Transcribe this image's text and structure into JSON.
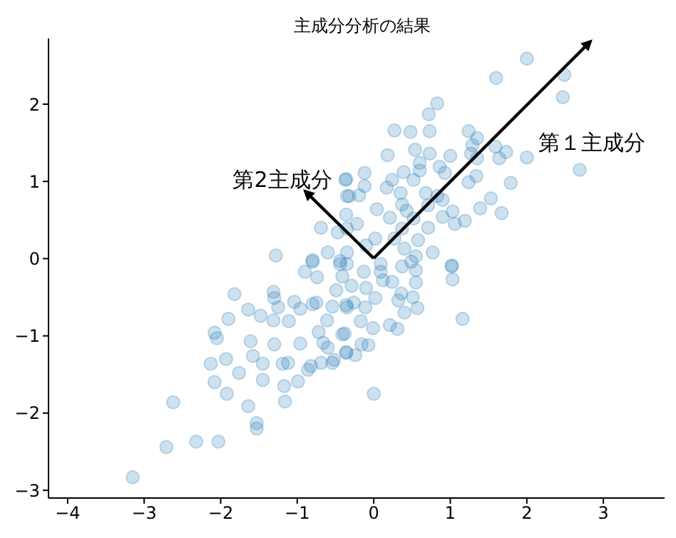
{
  "chart_data": {
    "type": "scatter",
    "title": "主成分分析の結果",
    "xlim": [
      -4.25,
      3.8
    ],
    "ylim": [
      -3.1,
      2.85
    ],
    "xticks": [
      -4,
      -3,
      -2,
      -1,
      0,
      1,
      2,
      3
    ],
    "yticks": [
      -3,
      -2,
      -1,
      0,
      1,
      2
    ],
    "grid": false,
    "marker": "circle",
    "series": [
      {
        "color": "#1f77b4",
        "x": [
          2.0,
          2.49,
          2.47,
          1.6,
          0.83,
          0.72,
          0.27,
          0.48,
          0.73,
          1.24,
          1.35,
          0.18,
          0.54,
          0.73,
          1.0,
          0.6,
          0.6,
          1.29,
          1.27,
          1.35,
          1.59,
          1.73,
          1.64,
          2.0,
          2.69,
          1.79,
          1.34,
          1.24,
          -0.12,
          -0.36,
          -0.12,
          0.24,
          0.39,
          0.86,
          0.93,
          -0.32,
          -0.19,
          0.17,
          0.35,
          0.52,
          0.68,
          0.83,
          -0.36,
          0.04,
          0.37,
          0.43,
          0.71,
          0.9,
          1.03,
          1.39,
          1.53,
          1.67,
          -0.22,
          0.21,
          0.52,
          0.9,
          1.19,
          1.06,
          0.71,
          0.37,
          0.02,
          0.27,
          0.58,
          -0.1,
          0.4,
          -0.35,
          0.55,
          0.77,
          1.02,
          0.09,
          0.37,
          -0.35,
          1.02,
          1.03,
          0.55,
          0.55,
          0.51,
          0.57,
          1.16,
          0.4,
          0.32,
          0.36,
          0.21,
          0.31,
          -0.01,
          -0.17,
          -0.11,
          -0.26,
          0.02,
          -0.1,
          0.12,
          0.24,
          0.09,
          -0.13,
          -0.29,
          -0.36,
          -0.38,
          -0.16,
          -0.07,
          -0.36,
          -0.24,
          0.0,
          0.49,
          -0.35,
          -1.82,
          -1.31,
          -1.3,
          -1.25,
          -1.64,
          -1.48,
          -1.31,
          -1.11,
          -1.04,
          -0.96,
          -0.8,
          -1.9,
          -2.08,
          -2.05,
          -1.61,
          -1.3,
          -0.96,
          -1.58,
          -1.93,
          -2.13,
          -1.45,
          -1.19,
          -1.12,
          -1.76,
          -2.08,
          -1.45,
          -1.17,
          -0.99,
          -0.86,
          -0.82,
          -0.69,
          -0.54,
          -1.92,
          -2.62,
          -1.64,
          -1.16,
          -1.53,
          -1.53,
          -2.32,
          -2.03,
          -2.71,
          -3.15,
          -0.41,
          -0.6,
          -0.52,
          -0.36,
          -0.72,
          -0.66,
          -0.61,
          -0.54,
          -0.74,
          -0.9,
          -0.49,
          -0.75,
          -0.41,
          -0.35,
          -0.44,
          -0.8,
          -0.37,
          -0.35,
          -0.69,
          -0.47,
          -1.28,
          -0.8,
          -0.6,
          -0.44
        ],
        "values": [
          2.59,
          2.38,
          2.09,
          2.34,
          2.01,
          1.87,
          1.66,
          1.64,
          1.65,
          1.65,
          1.56,
          1.34,
          1.41,
          1.36,
          1.33,
          1.24,
          1.14,
          1.47,
          1.36,
          1.3,
          1.45,
          1.38,
          1.3,
          1.31,
          1.15,
          0.98,
          1.07,
          0.99,
          1.11,
          1.03,
          0.94,
          1.02,
          1.12,
          1.19,
          1.11,
          0.81,
          0.82,
          0.92,
          0.85,
          1.02,
          0.85,
          0.81,
          0.57,
          0.64,
          0.7,
          0.62,
          0.69,
          0.76,
          0.61,
          0.65,
          0.78,
          0.59,
          0.45,
          0.53,
          0.52,
          0.54,
          0.49,
          0.45,
          0.4,
          0.39,
          0.26,
          0.26,
          0.24,
          0.17,
          0.13,
          0.39,
          0.03,
          0.08,
          -0.09,
          -0.07,
          -0.1,
          0.08,
          -0.1,
          -0.27,
          -0.15,
          -0.31,
          -0.5,
          -0.64,
          -0.78,
          -0.7,
          -0.54,
          -0.45,
          -0.86,
          -0.91,
          -0.9,
          -0.81,
          -0.63,
          -0.57,
          -0.51,
          -0.38,
          -0.28,
          -0.3,
          -0.17,
          -0.17,
          -0.35,
          -0.6,
          -0.97,
          -1.11,
          -1.12,
          -1.22,
          -1.25,
          -1.75,
          -0.04,
          -0.07,
          -0.46,
          -0.43,
          -0.51,
          -0.63,
          -0.66,
          -0.74,
          -0.8,
          -0.81,
          -0.56,
          -0.65,
          -0.59,
          -0.78,
          -0.96,
          -1.03,
          -1.07,
          -1.11,
          -1.1,
          -1.26,
          -1.3,
          -1.36,
          -1.36,
          -1.36,
          -1.35,
          -1.48,
          -1.6,
          -1.57,
          -1.65,
          -1.59,
          -1.44,
          -1.39,
          -1.35,
          -1.35,
          -1.75,
          -1.86,
          -1.91,
          -1.85,
          -2.13,
          -2.2,
          -2.37,
          -2.37,
          -2.44,
          -2.83,
          -0.98,
          -1.15,
          -1.31,
          -1.21,
          -0.95,
          -1.09,
          -0.8,
          -0.62,
          -0.24,
          -0.17,
          -0.41,
          -0.57,
          -0.23,
          -0.63,
          -0.07,
          -0.04,
          1.02,
          0.81,
          0.4,
          0.34,
          0.04,
          -0.02,
          0.08,
          -0.03
        ]
      }
    ],
    "annotations": [
      "第１主成分",
      "第2主成分"
    ]
  }
}
